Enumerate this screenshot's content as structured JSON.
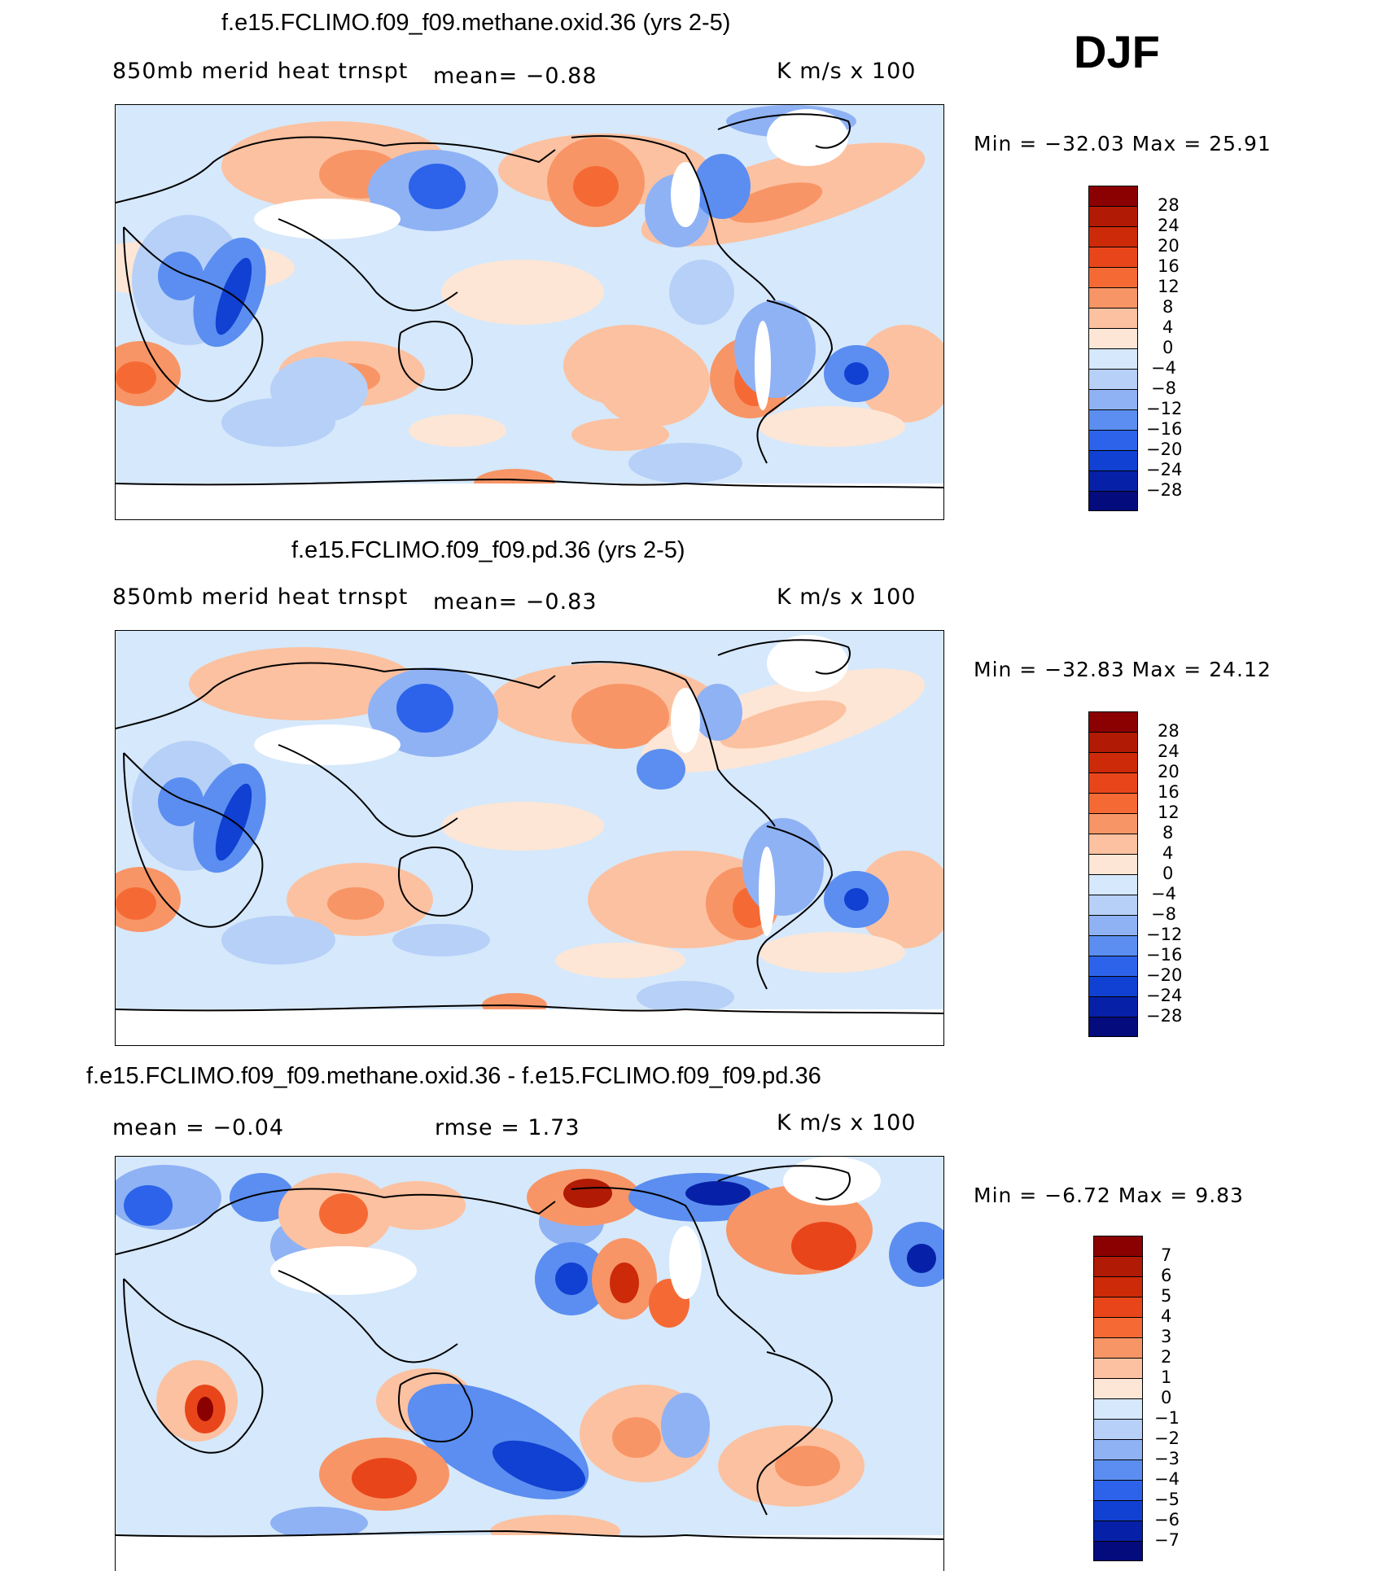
{
  "season": "DJF",
  "panels": [
    {
      "title": "f.e15.FCLIMO.f09_f09.methane.oxid.36 (yrs 2-5)",
      "variable": "850mb merid heat trnspt",
      "stat": "mean=   −0.88",
      "units": "K m/s x 100",
      "minmax": "Min = −32.03 Max =  25.91",
      "levels": [
        "28",
        "24",
        "20",
        "16",
        "12",
        "8",
        "4",
        "0",
        "−4",
        "−8",
        "−12",
        "−16",
        "−20",
        "−24",
        "−28"
      ],
      "colors": [
        "#8b0000",
        "#b11a04",
        "#cc2a08",
        "#e8461a",
        "#f56a34",
        "#f89566",
        "#fcc1a0",
        "#fde6d5",
        "#d6e8fb",
        "#b6d0f8",
        "#8fb2f4",
        "#5b8ef0",
        "#2d63ea",
        "#1041d2",
        "#0621a8",
        "#040b7c"
      ]
    },
    {
      "title": "f.e15.FCLIMO.f09_f09.pd.36 (yrs 2-5)",
      "variable": "850mb merid heat trnspt",
      "stat": "mean=   −0.83",
      "units": "K m/s x 100",
      "minmax": "Min = −32.83 Max =  24.12",
      "levels": [
        "28",
        "24",
        "20",
        "16",
        "12",
        "8",
        "4",
        "0",
        "−4",
        "−8",
        "−12",
        "−16",
        "−20",
        "−24",
        "−28"
      ],
      "colors": [
        "#8b0000",
        "#b11a04",
        "#cc2a08",
        "#e8461a",
        "#f56a34",
        "#f89566",
        "#fcc1a0",
        "#fde6d5",
        "#d6e8fb",
        "#b6d0f8",
        "#8fb2f4",
        "#5b8ef0",
        "#2d63ea",
        "#1041d2",
        "#0621a8",
        "#040b7c"
      ]
    },
    {
      "title": "f.e15.FCLIMO.f09_f09.methane.oxid.36 - f.e15.FCLIMO.f09_f09.pd.36",
      "stat_mean": "mean =   −0.04",
      "stat_rmse": "rmse =    1.73",
      "units": "K m/s x 100",
      "minmax": "Min =   −6.72 Max =   9.83",
      "levels": [
        "7",
        "6",
        "5",
        "4",
        "3",
        "2",
        "1",
        "0",
        "−1",
        "−2",
        "−3",
        "−4",
        "−5",
        "−6",
        "−7"
      ],
      "colors": [
        "#8b0000",
        "#b11a04",
        "#cc2a08",
        "#e8461a",
        "#f56a34",
        "#f89566",
        "#fcc1a0",
        "#fde6d5",
        "#d6e8fb",
        "#b6d0f8",
        "#8fb2f4",
        "#5b8ef0",
        "#2d63ea",
        "#1041d2",
        "#0621a8",
        "#040b7c"
      ]
    }
  ]
}
